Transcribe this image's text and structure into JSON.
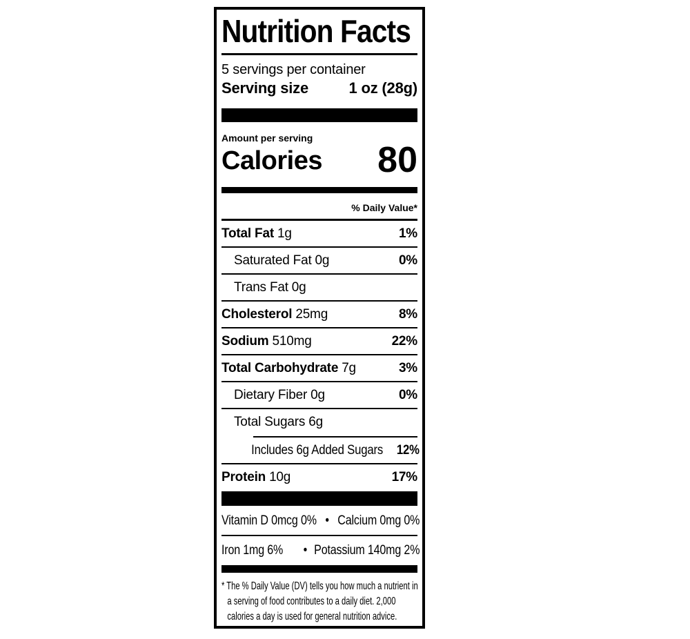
{
  "colors": {
    "ink": "#000000",
    "background": "#ffffff"
  },
  "label": {
    "title": "Nutrition Facts",
    "servings_per_container": "5 servings per container",
    "serving_size_label": "Serving size",
    "serving_size_value": "1 oz (28g)",
    "amount_per_serving": "Amount per serving",
    "calories_label": "Calories",
    "calories_value": "80",
    "daily_value_header": "% Daily Value*",
    "rows": [
      {
        "name": "Total Fat",
        "amount": "1g",
        "pct": "1%"
      },
      {
        "name": "Saturated Fat",
        "amount": "0g",
        "pct": "0%"
      },
      {
        "name": "Trans Fat",
        "amount": "0g",
        "pct": ""
      },
      {
        "name": "Cholesterol",
        "amount": "25mg",
        "pct": "8%"
      },
      {
        "name": "Sodium",
        "amount": "510mg",
        "pct": "22%"
      },
      {
        "name": "Total Carbohydrate",
        "amount": "7g",
        "pct": "3%"
      },
      {
        "name": "Dietary Fiber",
        "amount": "0g",
        "pct": "0%"
      },
      {
        "name": "Total Sugars",
        "amount": "6g",
        "pct": ""
      },
      {
        "name": "Includes 6g Added Sugars",
        "amount": "",
        "pct": "12%"
      },
      {
        "name": "Protein",
        "amount": "10g",
        "pct": "17%"
      }
    ],
    "bullet": "•",
    "vitamins": [
      {
        "left": "Vitamin D 0mcg 0%",
        "right": "Calcium 0mg 0%"
      },
      {
        "left": "Iron 1mg 6%",
        "right": "Potassium 140mg 2%"
      }
    ],
    "footnote_marker": "*",
    "footnote_text": "The % Daily Value (DV) tells you how much a nutrient in a serving of food contributes to a daily diet. 2,000 calories a day is used for general nutrition advice."
  }
}
